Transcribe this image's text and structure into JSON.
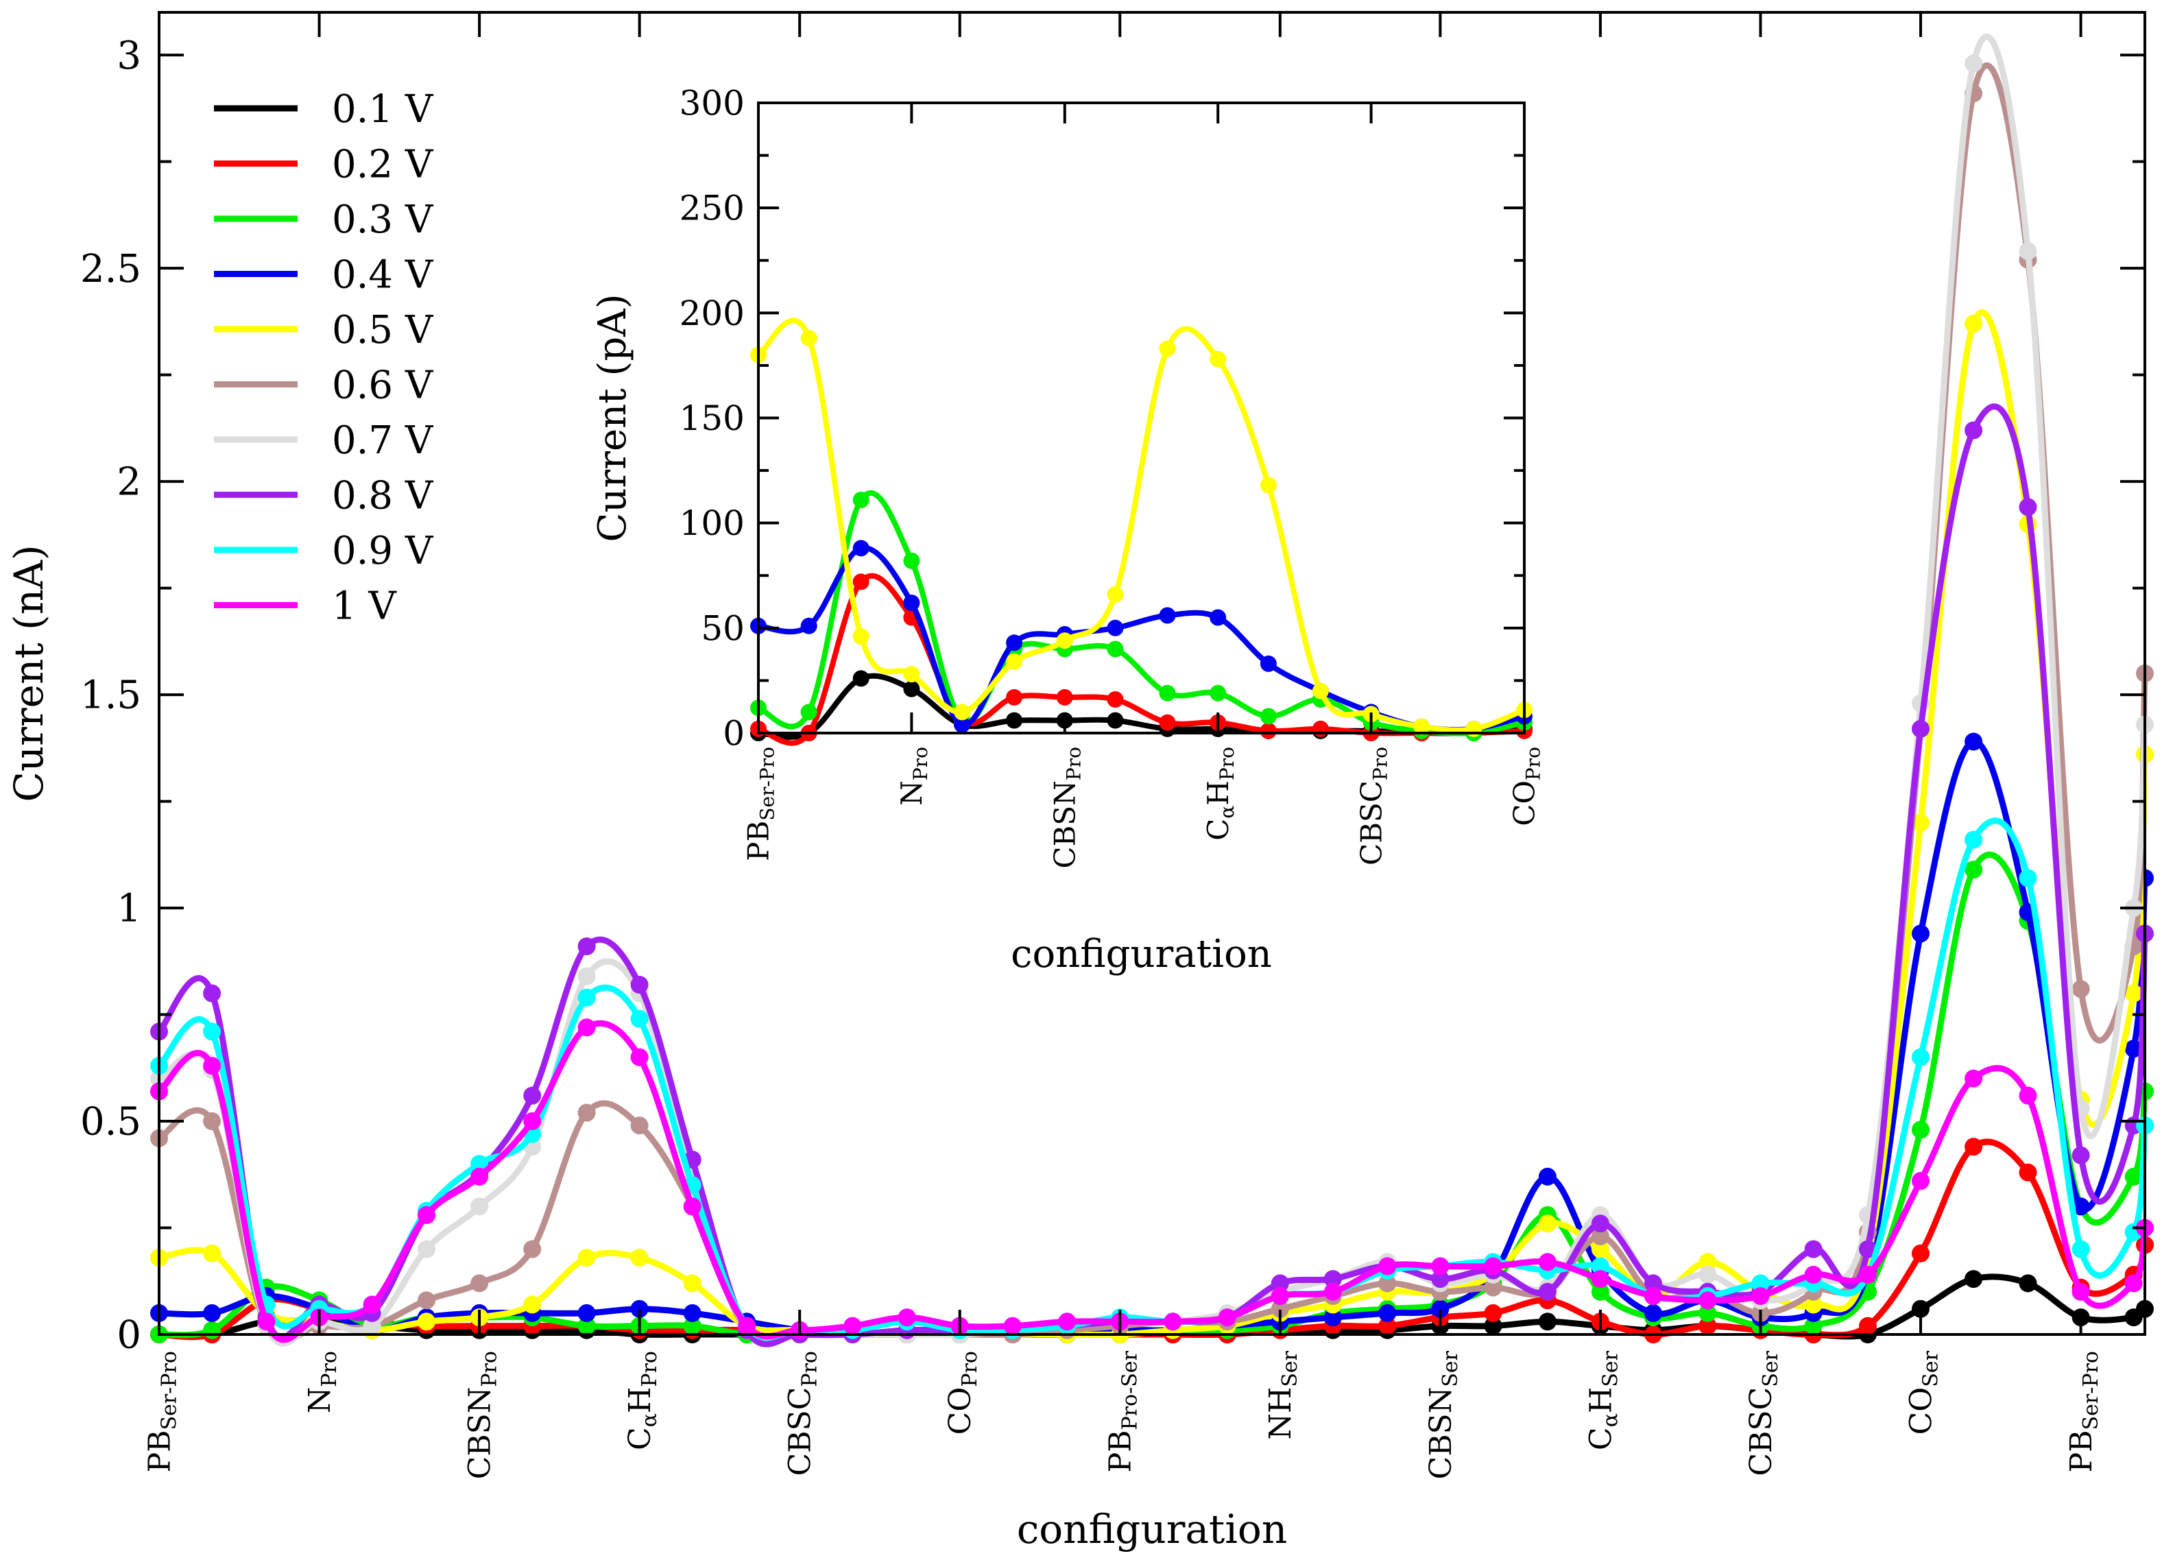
{
  "chart_data": [
    {
      "type": "line",
      "xlabel": "configuration",
      "ylabel": "Current (nA)",
      "ylim": [
        0,
        3.1
      ],
      "yticks": [
        "0",
        "0.5",
        "1",
        "1.5",
        "2",
        "2.5",
        "3"
      ],
      "ytick_values": [
        0,
        0.5,
        1,
        1.5,
        2,
        2.5,
        3
      ],
      "categories": [
        {
          "main": "PB",
          "sub": "Ser-Pro"
        },
        {
          "main": "N",
          "sub": "Pro"
        },
        {
          "main": "CBSN",
          "sub": "Pro"
        },
        {
          "main": "C",
          "sub": "α",
          "main2": "H",
          "sub2": "Pro"
        },
        {
          "main": "CBSC",
          "sub": "Pro"
        },
        {
          "main": "CO",
          "sub": "Pro"
        },
        {
          "main": "PB",
          "sub": "Pro-Ser"
        },
        {
          "main": "NH",
          "sub": "Ser"
        },
        {
          "main": "CBSN",
          "sub": "Ser"
        },
        {
          "main": "C",
          "sub": "α",
          "main2": "H",
          "sub2": "Ser"
        },
        {
          "main": "CBSC",
          "sub": "Ser"
        },
        {
          "main": "CO",
          "sub": "Ser"
        },
        {
          "main": "PB",
          "sub": "Ser-Pro"
        }
      ],
      "xrange": [
        0,
        12.4
      ],
      "legend_position": "top-left",
      "grid": false,
      "x": [
        0,
        0.33,
        0.67,
        1,
        1.33,
        1.67,
        2,
        2.33,
        2.67,
        3,
        3.33,
        3.67,
        4,
        4.33,
        4.67,
        5,
        5.33,
        5.67,
        6,
        6.33,
        6.67,
        7,
        7.33,
        7.67,
        8,
        8.33,
        8.67,
        9,
        9.33,
        9.67,
        10,
        10.33,
        10.67,
        11,
        11.33,
        11.67,
        12,
        12.33
      ],
      "series": [
        {
          "name": "0.1 V",
          "color": "#000000",
          "values": [
            0.0,
            0.0,
            0.03,
            0.03,
            0.02,
            0.01,
            0.01,
            0.01,
            0.01,
            0.0,
            0.0,
            0.0,
            0.0,
            0.0,
            0.0,
            0.0,
            0.0,
            0.0,
            0.0,
            0.0,
            0.0,
            0.01,
            0.01,
            0.01,
            0.02,
            0.02,
            0.03,
            0.02,
            0.01,
            0.02,
            0.01,
            0.0,
            0.0,
            0.06,
            0.13,
            0.12,
            0.04,
            0.04
          ]
        },
        {
          "name": "0.2 V",
          "color": "#ff0000",
          "values": [
            0.0,
            0.0,
            0.08,
            0.06,
            0.03,
            0.02,
            0.02,
            0.02,
            0.02,
            0.01,
            0.01,
            0.01,
            0.0,
            0.0,
            0.0,
            0.0,
            0.0,
            0.0,
            0.0,
            0.0,
            0.0,
            0.01,
            0.02,
            0.02,
            0.04,
            0.05,
            0.08,
            0.03,
            0.0,
            0.02,
            0.01,
            0.0,
            0.02,
            0.19,
            0.44,
            0.38,
            0.11,
            0.14
          ]
        },
        {
          "name": "0.3 V",
          "color": "#00ee00",
          "values": [
            0.0,
            0.01,
            0.11,
            0.08,
            0.02,
            0.04,
            0.04,
            0.04,
            0.02,
            0.02,
            0.02,
            0.0,
            0.0,
            0.0,
            0.0,
            0.0,
            0.0,
            0.0,
            0.0,
            0.01,
            0.01,
            0.02,
            0.05,
            0.06,
            0.07,
            0.12,
            0.28,
            0.1,
            0.04,
            0.05,
            0.02,
            0.02,
            0.1,
            0.48,
            1.09,
            0.97,
            0.3,
            0.37
          ]
        },
        {
          "name": "0.4 V",
          "color": "#0000ee",
          "values": [
            0.05,
            0.05,
            0.09,
            0.06,
            0.01,
            0.04,
            0.05,
            0.05,
            0.05,
            0.06,
            0.05,
            0.03,
            0.01,
            0.0,
            0.0,
            0.0,
            0.0,
            0.0,
            0.01,
            0.01,
            0.02,
            0.03,
            0.04,
            0.05,
            0.06,
            0.14,
            0.37,
            0.15,
            0.05,
            0.08,
            0.04,
            0.05,
            0.15,
            0.94,
            1.39,
            0.99,
            0.3,
            0.67
          ]
        },
        {
          "name": "0.5 V",
          "color": "#ffff00",
          "values": [
            0.18,
            0.19,
            0.05,
            0.03,
            0.01,
            0.03,
            0.04,
            0.07,
            0.18,
            0.18,
            0.12,
            0.02,
            0.01,
            0.0,
            0.0,
            0.0,
            0.0,
            0.0,
            0.0,
            0.01,
            0.02,
            0.05,
            0.07,
            0.1,
            0.1,
            0.14,
            0.26,
            0.2,
            0.09,
            0.17,
            0.1,
            0.07,
            0.18,
            1.2,
            2.37,
            1.9,
            0.55,
            0.8
          ]
        },
        {
          "name": "0.6 V",
          "color": "#bc8f8f",
          "values": [
            0.46,
            0.5,
            0.02,
            0.02,
            0.02,
            0.08,
            0.12,
            0.2,
            0.52,
            0.49,
            0.3,
            0.01,
            0.0,
            0.0,
            0.0,
            0.0,
            0.0,
            0.01,
            0.02,
            0.03,
            0.03,
            0.06,
            0.09,
            0.12,
            0.1,
            0.11,
            0.1,
            0.23,
            0.09,
            0.1,
            0.05,
            0.1,
            0.24,
            1.42,
            2.91,
            2.52,
            0.81,
            0.91
          ]
        },
        {
          "name": "0.7 V",
          "color": "#dddddd",
          "values": [
            0.6,
            0.62,
            0.02,
            0.03,
            0.02,
            0.2,
            0.3,
            0.44,
            0.84,
            0.8,
            0.36,
            0.01,
            0.0,
            0.0,
            0.0,
            0.0,
            0.01,
            0.02,
            0.03,
            0.03,
            0.05,
            0.1,
            0.13,
            0.17,
            0.12,
            0.14,
            0.11,
            0.28,
            0.12,
            0.14,
            0.08,
            0.12,
            0.28,
            1.48,
            2.98,
            2.54,
            0.53,
            1.0
          ]
        },
        {
          "name": "0.8 V",
          "color": "#a020f0",
          "values": [
            0.71,
            0.8,
            0.04,
            0.07,
            0.05,
            0.28,
            0.38,
            0.56,
            0.91,
            0.82,
            0.41,
            0.01,
            0.0,
            0.0,
            0.01,
            0.01,
            0.01,
            0.02,
            0.03,
            0.03,
            0.04,
            0.12,
            0.13,
            0.16,
            0.13,
            0.15,
            0.1,
            0.26,
            0.12,
            0.1,
            0.1,
            0.2,
            0.2,
            1.42,
            2.12,
            1.94,
            0.42,
            0.49
          ]
        },
        {
          "name": "0.9 V",
          "color": "#00ffff",
          "values": [
            0.63,
            0.71,
            0.07,
            0.06,
            0.07,
            0.29,
            0.4,
            0.47,
            0.79,
            0.74,
            0.35,
            0.02,
            0.01,
            0.01,
            0.03,
            0.01,
            0.01,
            0.02,
            0.04,
            0.03,
            0.04,
            0.09,
            0.1,
            0.15,
            0.16,
            0.17,
            0.15,
            0.16,
            0.09,
            0.09,
            0.12,
            0.12,
            0.14,
            0.65,
            1.16,
            1.07,
            0.2,
            0.24
          ]
        },
        {
          "name": "1 V",
          "color": "#ff00ff",
          "values": [
            0.57,
            0.63,
            0.03,
            0.04,
            0.07,
            0.28,
            0.37,
            0.5,
            0.72,
            0.65,
            0.3,
            0.02,
            0.01,
            0.02,
            0.04,
            0.02,
            0.02,
            0.03,
            0.03,
            0.03,
            0.04,
            0.09,
            0.1,
            0.16,
            0.16,
            0.16,
            0.17,
            0.13,
            0.09,
            0.08,
            0.09,
            0.14,
            0.14,
            0.36,
            0.6,
            0.56,
            0.1,
            0.12
          ]
        }
      ],
      "last_point": {
        "x": 12.4,
        "values": [
          0.06,
          0.21,
          0.57,
          1.07,
          1.36,
          1.55,
          1.43,
          0.94,
          0.49,
          0.25
        ]
      }
    },
    {
      "type": "line",
      "xlabel": "configuration",
      "ylabel": "Current (pA)",
      "ylim": [
        0,
        300
      ],
      "yticks": [
        "0",
        "50",
        "100",
        "150",
        "200",
        "250",
        "300"
      ],
      "ytick_values": [
        0,
        50,
        100,
        150,
        200,
        250,
        300
      ],
      "categories": [
        {
          "main": "PB",
          "sub": "Ser-Pro"
        },
        {
          "main": "N",
          "sub": "Pro"
        },
        {
          "main": "CBSN",
          "sub": "Pro"
        },
        {
          "main": "C",
          "sub": "α",
          "main2": "H",
          "sub2": "Pro"
        },
        {
          "main": "CBSC",
          "sub": "Pro"
        },
        {
          "main": "CO",
          "sub": "Pro"
        }
      ],
      "xrange": [
        0,
        5
      ],
      "x": [
        0,
        0.33,
        0.67,
        1,
        1.33,
        1.67,
        2,
        2.33,
        2.67,
        3,
        3.33,
        3.67,
        4,
        4.33,
        4.67,
        5
      ],
      "series": [
        {
          "name": "0.1 V",
          "color": "#000000",
          "values": [
            0,
            0,
            26,
            21,
            4,
            6,
            6,
            6,
            2,
            2,
            1,
            1,
            1,
            0,
            0,
            2
          ]
        },
        {
          "name": "0.2 V",
          "color": "#ff0000",
          "values": [
            2,
            0,
            72,
            55,
            6,
            17,
            17,
            16,
            5,
            5,
            1,
            2,
            0,
            0,
            0,
            1
          ]
        },
        {
          "name": "0.3 V",
          "color": "#00ee00",
          "values": [
            12,
            10,
            111,
            82,
            6,
            40,
            40,
            40,
            19,
            19,
            8,
            16,
            5,
            1,
            0,
            5
          ]
        },
        {
          "name": "0.4 V",
          "color": "#0000ee",
          "values": [
            51,
            51,
            88,
            62,
            4,
            43,
            47,
            50,
            56,
            55,
            33,
            20,
            10,
            3,
            2,
            8
          ]
        },
        {
          "name": "0.5 V",
          "color": "#ffff00",
          "values": [
            180,
            188,
            46,
            28,
            10,
            34,
            44,
            66,
            183,
            178,
            118,
            20,
            9,
            3,
            2,
            11
          ]
        }
      ]
    }
  ],
  "legend": [
    {
      "label": "0.1 V",
      "color": "#000000"
    },
    {
      "label": "0.2 V",
      "color": "#ff0000"
    },
    {
      "label": "0.3 V",
      "color": "#00ee00"
    },
    {
      "label": "0.4 V",
      "color": "#0000ee"
    },
    {
      "label": "0.5 V",
      "color": "#ffff00"
    },
    {
      "label": "0.6 V",
      "color": "#bc8f8f"
    },
    {
      "label": "0.7 V",
      "color": "#dddddd"
    },
    {
      "label": "0.8 V",
      "color": "#a020f0"
    },
    {
      "label": "0.9 V",
      "color": "#00ffff"
    },
    {
      "label": "1 V",
      "color": "#ff00ff"
    }
  ]
}
